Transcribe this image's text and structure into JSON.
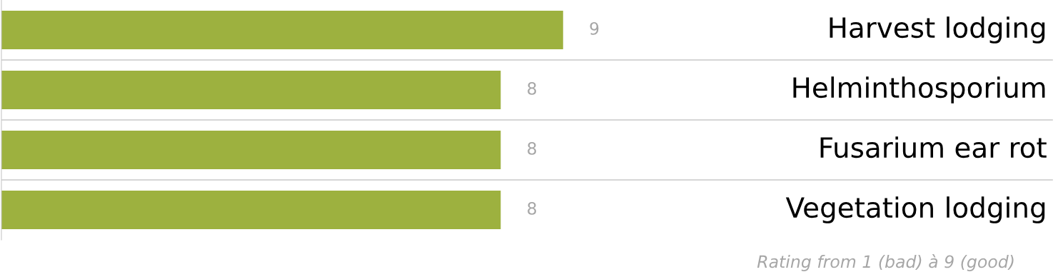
{
  "chart_data": {
    "type": "bar",
    "orientation": "horizontal",
    "grid": "y",
    "data_labels": true,
    "categories": [
      "Harvest lodging",
      "Helminthosporium",
      "Fusarium ear rot",
      "Vegetation lodging"
    ],
    "color": "#9db13f",
    "values": [
      9,
      8,
      8,
      8
    ],
    "annotations": [
      "Rating from 1 (bad) à 9 (good)"
    ]
  }
}
